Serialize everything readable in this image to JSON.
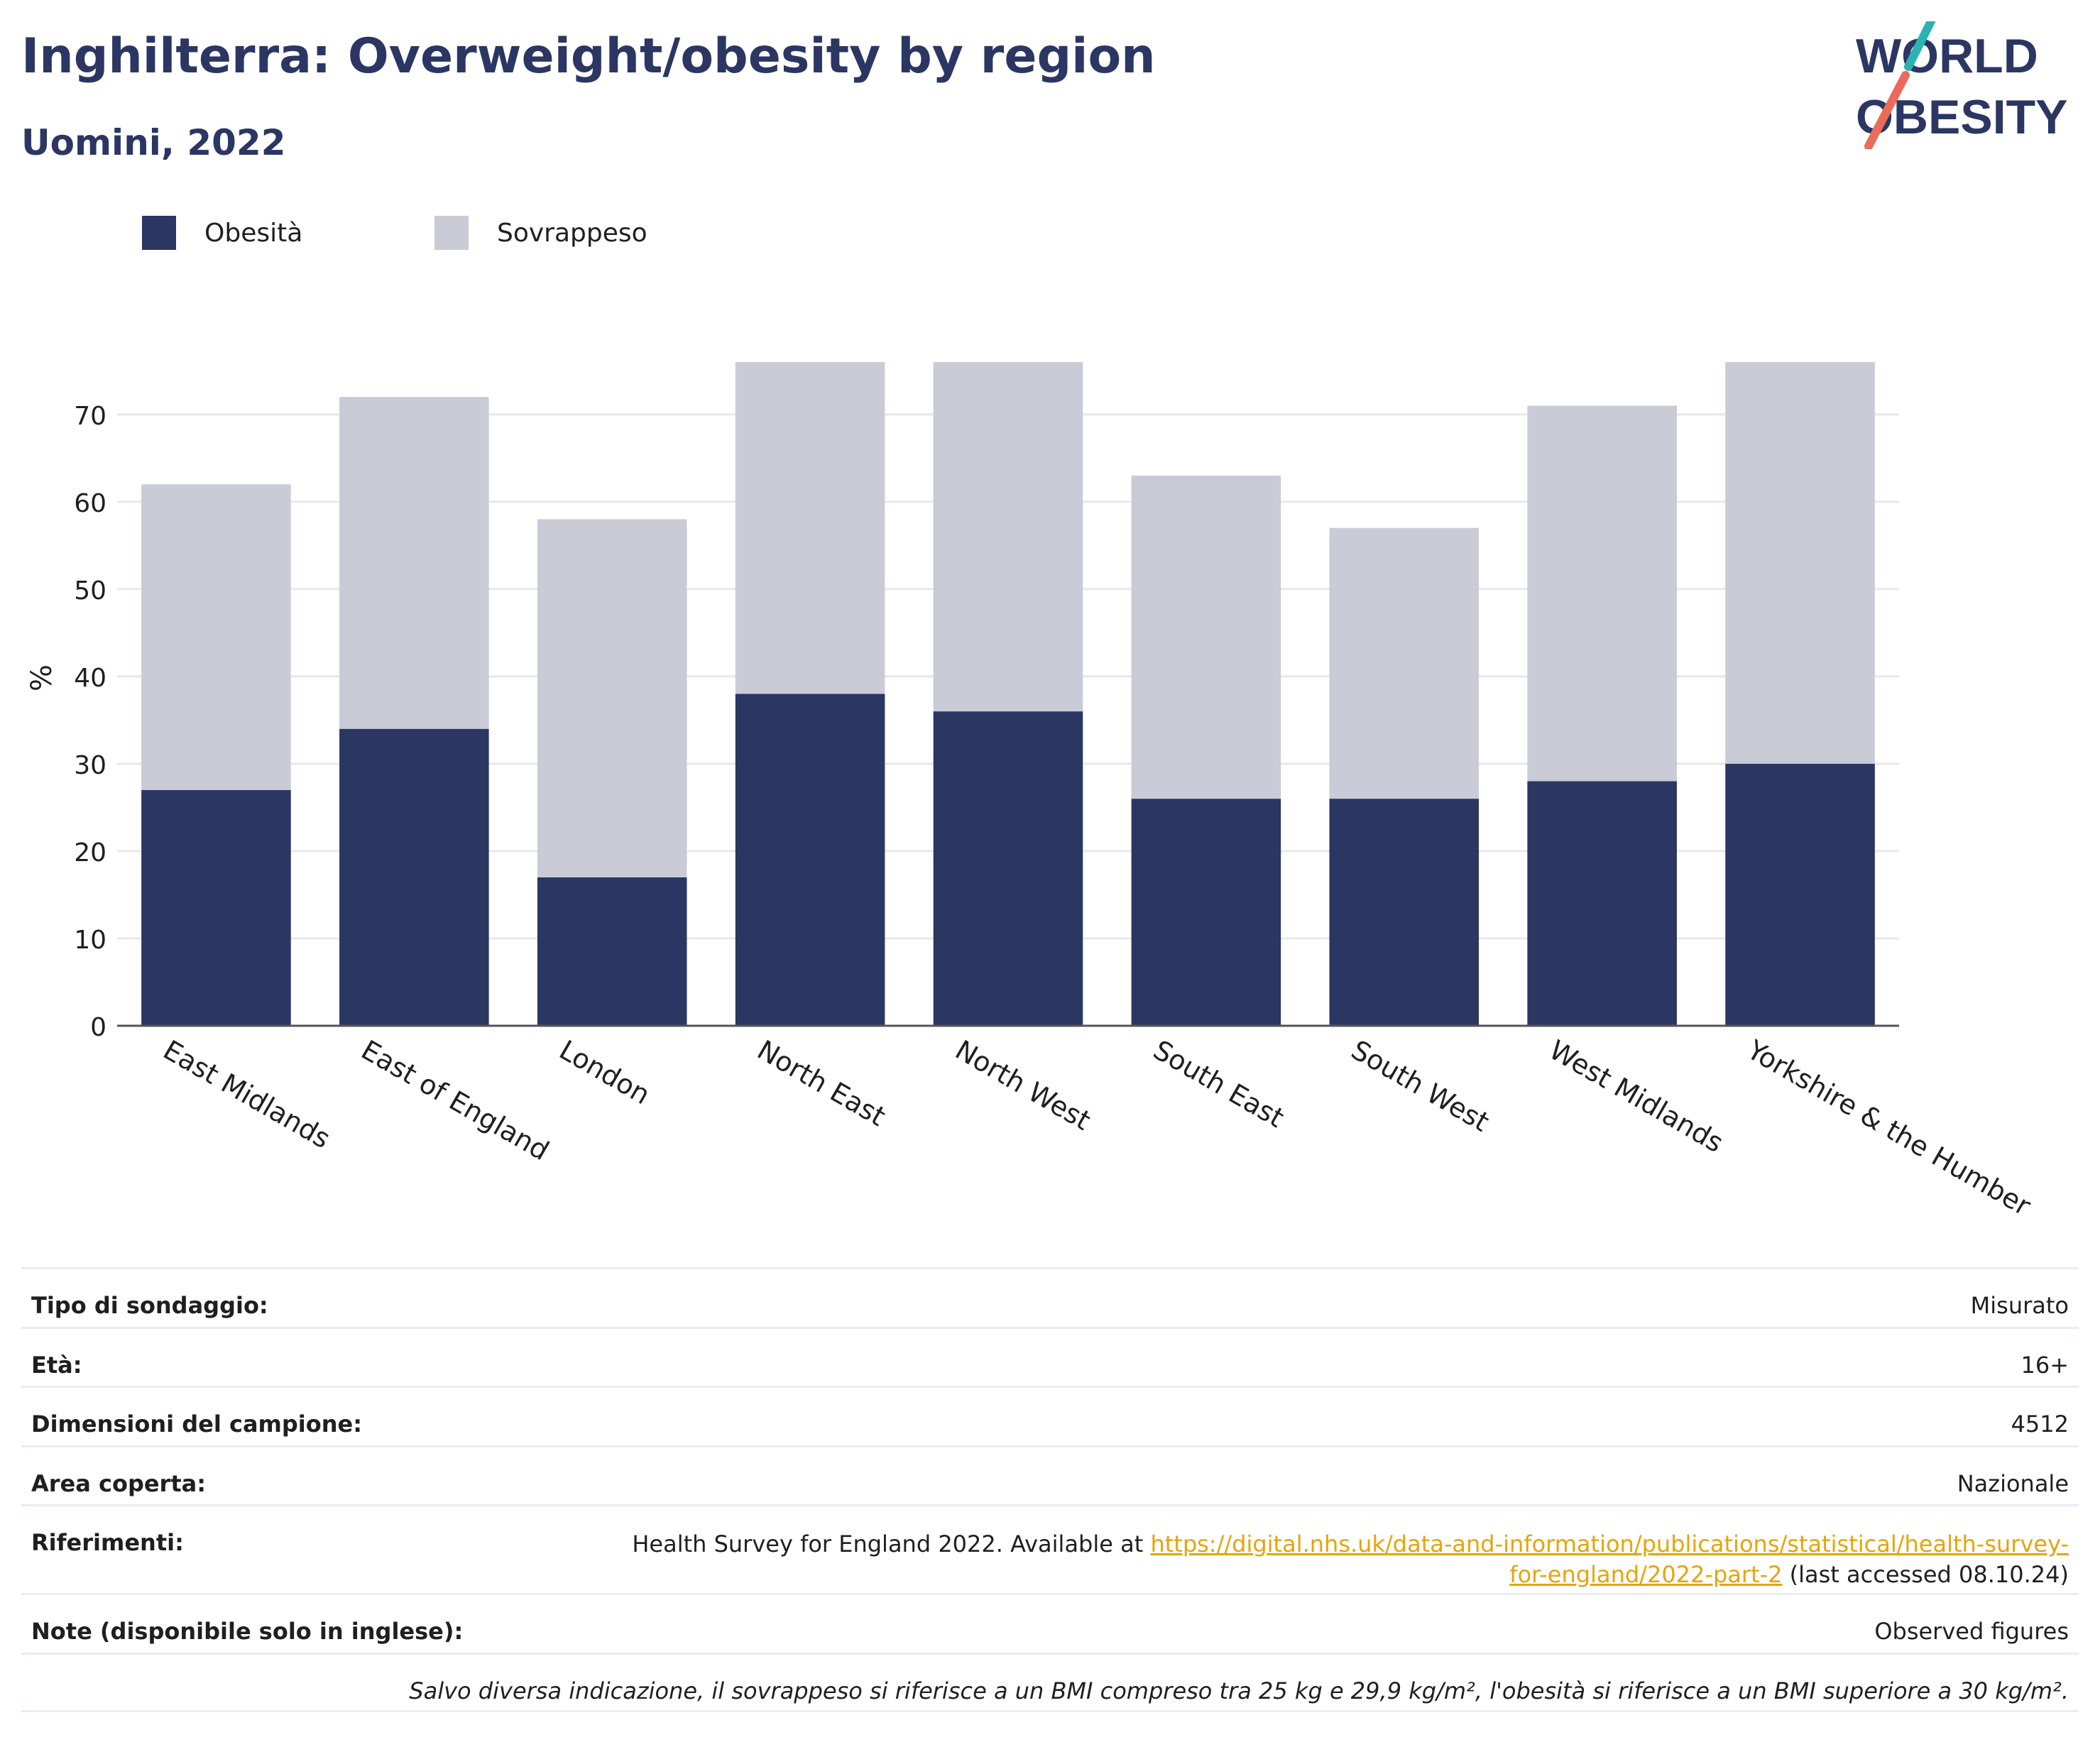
{
  "header": {
    "title": "Inghilterra: Overweight/obesity by region",
    "subtitle": "Uomini, 2022"
  },
  "logo": {
    "line1": "WORLD",
    "line2": "OBESITY"
  },
  "colors": {
    "obesity": "#2b3663",
    "overweight": "#c9cbd6",
    "title": "#2b3663",
    "grid": "#e8e8ec",
    "axis": "#555555",
    "link": "#e5a50a",
    "logo_teal": "#2ab3b1",
    "logo_coral": "#ea6b5a"
  },
  "chart_data": {
    "type": "bar",
    "stacked": true,
    "categories": [
      "East Midlands",
      "East of England",
      "London",
      "North East",
      "North West",
      "South East",
      "South West",
      "West Midlands",
      "Yorkshire & the Humber"
    ],
    "series": [
      {
        "name": "Obesità",
        "values": [
          27,
          34,
          17,
          38,
          36,
          26,
          26,
          28,
          30
        ]
      },
      {
        "name": "Sovrappeso",
        "values": [
          35,
          38,
          41,
          38,
          40,
          37,
          31,
          43,
          46
        ]
      }
    ],
    "ylabel": "%",
    "ylim": [
      0,
      76
    ],
    "yticks": [
      0,
      10,
      20,
      30,
      40,
      50,
      60,
      70
    ],
    "grid": true,
    "legend_position": "top-left"
  },
  "info": {
    "survey_type": {
      "label": "Tipo di sondaggio:",
      "value": "Misurato"
    },
    "age": {
      "label": "Età:",
      "value": "16+"
    },
    "sample_size": {
      "label": "Dimensioni del campione:",
      "value": "4512"
    },
    "area": {
      "label": "Area coperta:",
      "value": "Nazionale"
    },
    "references": {
      "label": "Riferimenti:",
      "text_before": "Health Survey for England 2022. Available at ",
      "link": "https://digital.nhs.uk/data-and-information/publications/statistical/health-survey-for-england/2022-part-2",
      "text_after": " (last accessed 08.10.24)"
    },
    "notes": {
      "label": "Note (disponibile solo in inglese):",
      "value": "Observed figures"
    },
    "footnote": "Salvo diversa indicazione, il sovrappeso si riferisce a un BMI compreso tra 25 kg e 29,9 kg/m², l'obesità si riferisce a un BMI superiore a 30 kg/m²."
  }
}
